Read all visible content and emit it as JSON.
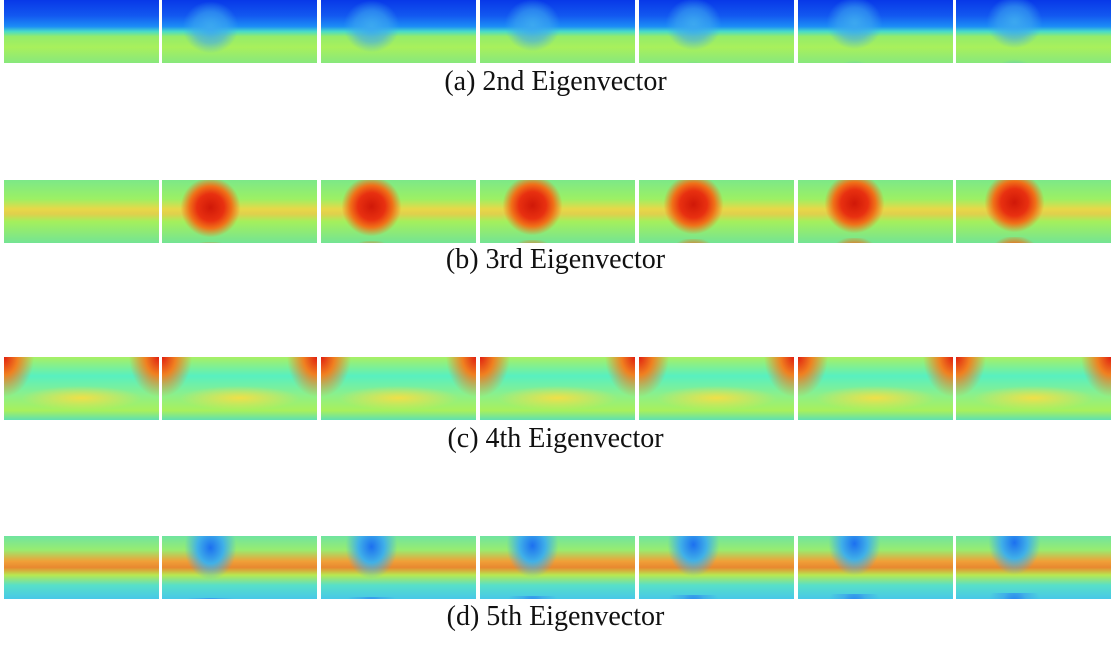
{
  "panels": [
    {
      "caption": "(a) 2nd Eigenvector"
    },
    {
      "caption": "(b) 3rd Eigenvector"
    },
    {
      "caption": "(c) 4th Eigenvector"
    },
    {
      "caption": "(d) 5th Eigenvector"
    }
  ]
}
